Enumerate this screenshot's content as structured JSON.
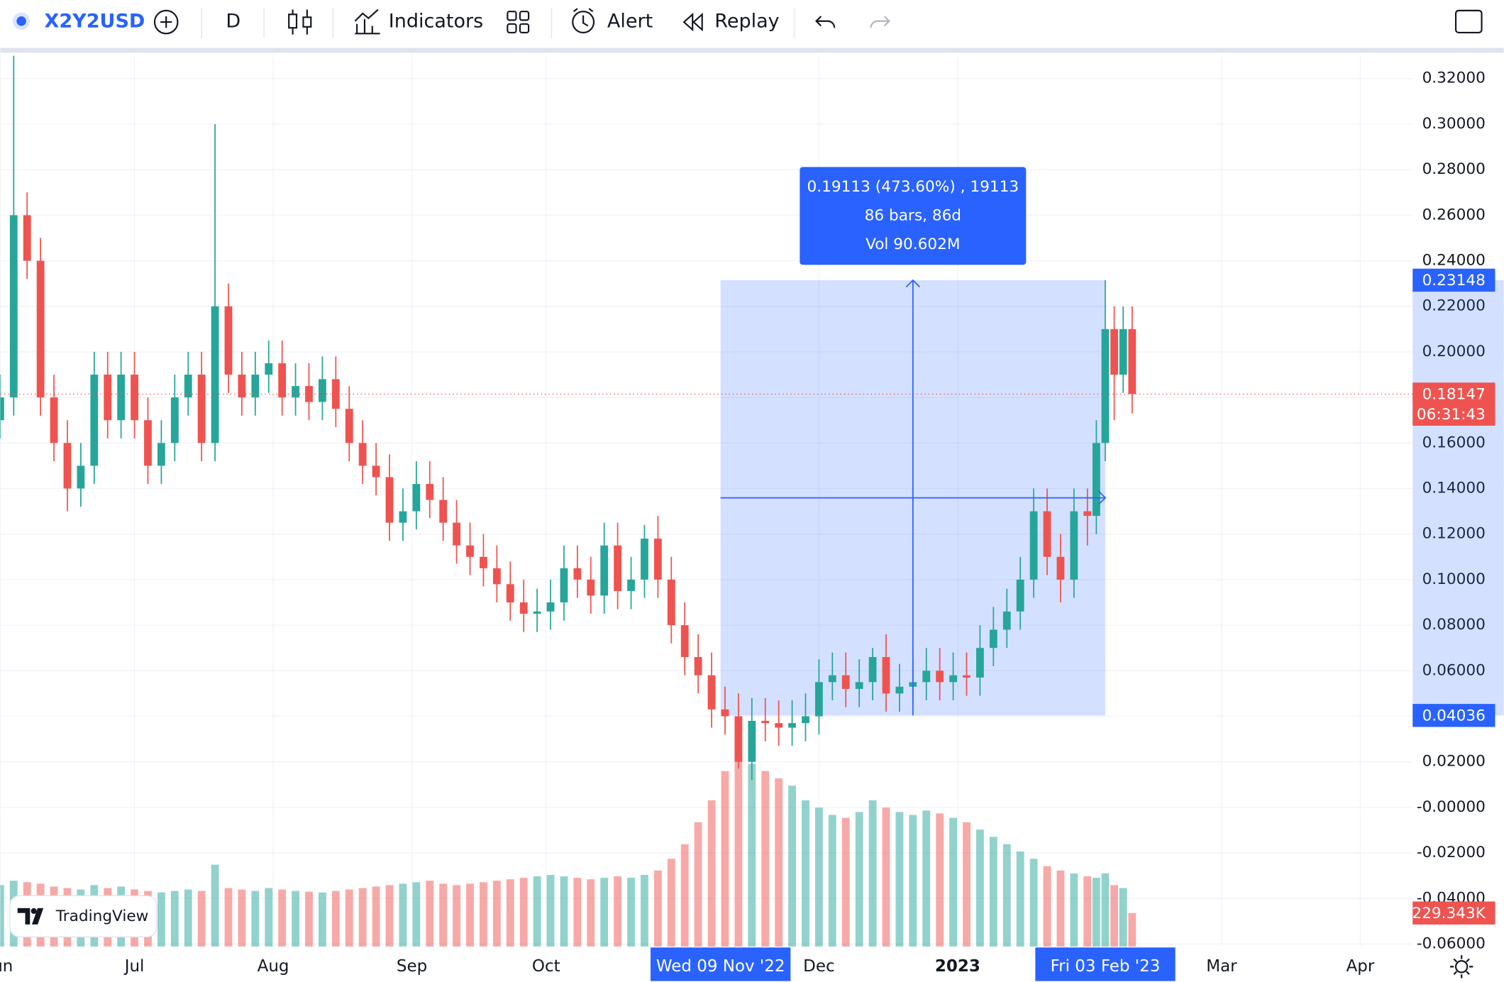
{
  "toolbar": {
    "symbol": "X2Y2USD",
    "interval": "D",
    "buttons": [
      "Indicators",
      "Alert",
      "Replay"
    ]
  },
  "watermark": "TradingView",
  "chart_data": {
    "type": "candlestick",
    "up_color": "#26a69a",
    "down_color": "#ef5350",
    "grid": true,
    "xlim": [
      0,
      315.7
    ],
    "xticks": [
      {
        "value": 0,
        "label": "Jun"
      },
      {
        "value": 30,
        "label": "Jul"
      },
      {
        "value": 61,
        "label": "Aug"
      },
      {
        "value": 92,
        "label": "Sep"
      },
      {
        "value": 122,
        "label": "Oct"
      },
      {
        "value": 183,
        "label": "Dec"
      },
      {
        "value": 214,
        "label": "2023",
        "bold": true
      },
      {
        "value": 273,
        "label": "Mar"
      },
      {
        "value": 304,
        "label": "Apr"
      }
    ],
    "ylim": [
      -0.0611,
      0.3305
    ],
    "yticks": [
      {
        "value": 0.32,
        "label": "0.32000"
      },
      {
        "value": 0.3,
        "label": "0.30000"
      },
      {
        "value": 0.28,
        "label": "0.28000"
      },
      {
        "value": 0.26,
        "label": "0.26000"
      },
      {
        "value": 0.24,
        "label": "0.24000"
      },
      {
        "value": 0.22,
        "label": "0.22000"
      },
      {
        "value": 0.2,
        "label": "0.20000"
      },
      {
        "value": 0.18,
        "label": "0.18000"
      },
      {
        "value": 0.16,
        "label": "0.16000"
      },
      {
        "value": 0.14,
        "label": "0.14000"
      },
      {
        "value": 0.12,
        "label": "0.12000"
      },
      {
        "value": 0.1,
        "label": "0.10000"
      },
      {
        "value": 0.08,
        "label": "0.08000"
      },
      {
        "value": 0.06,
        "label": "0.06000"
      },
      {
        "value": 0.04,
        "label": "0.04000"
      },
      {
        "value": 0.02,
        "label": "0.02000"
      },
      {
        "value": 0,
        "label": "-0.00000"
      },
      {
        "value": -0.02,
        "label": "-0.02000"
      },
      {
        "value": -0.04,
        "label": "-0.04000"
      },
      {
        "value": -0.06,
        "label": "-0.06000"
      }
    ],
    "volume_lim": [
      0,
      6100000
    ],
    "x": [
      0,
      3,
      6,
      9,
      12,
      15,
      18,
      21,
      24,
      27,
      30,
      33,
      36,
      39,
      42,
      45,
      48,
      51,
      54,
      57,
      60,
      63,
      66,
      69,
      72,
      75,
      78,
      81,
      84,
      87,
      90,
      93,
      96,
      99,
      102,
      105,
      108,
      111,
      114,
      117,
      120,
      123,
      126,
      129,
      132,
      135,
      138,
      141,
      144,
      147,
      150,
      153,
      156,
      159,
      162,
      165,
      168,
      171,
      174,
      177,
      180,
      183,
      186,
      189,
      192,
      195,
      198,
      201,
      204,
      207,
      210,
      213,
      216,
      219,
      222,
      225,
      228,
      231,
      234,
      237,
      240,
      243,
      245,
      247,
      249,
      251,
      253
    ],
    "open": [
      0.17,
      0.18,
      0.26,
      0.24,
      0.18,
      0.16,
      0.14,
      0.15,
      0.19,
      0.17,
      0.19,
      0.17,
      0.15,
      0.16,
      0.18,
      0.19,
      0.16,
      0.22,
      0.19,
      0.18,
      0.19,
      0.195,
      0.18,
      0.185,
      0.178,
      0.188,
      0.175,
      0.16,
      0.15,
      0.145,
      0.125,
      0.13,
      0.142,
      0.135,
      0.125,
      0.115,
      0.11,
      0.105,
      0.098,
      0.09,
      0.085,
      0.086,
      0.09,
      0.105,
      0.1,
      0.093,
      0.115,
      0.095,
      0.1,
      0.118,
      0.1,
      0.08,
      0.066,
      0.058,
      0.043,
      0.04,
      0.02,
      0.038,
      0.037,
      0.035,
      0.037,
      0.04,
      0.055,
      0.058,
      0.052,
      0.055,
      0.066,
      0.05,
      0.053,
      0.055,
      0.06,
      0.055,
      0.058,
      0.057,
      0.07,
      0.078,
      0.086,
      0.1,
      0.13,
      0.11,
      0.1,
      0.13,
      0.128,
      0.16,
      0.21,
      0.19,
      0.21
    ],
    "high": [
      0.19,
      0.33,
      0.27,
      0.25,
      0.19,
      0.17,
      0.16,
      0.2,
      0.2,
      0.2,
      0.2,
      0.18,
      0.17,
      0.19,
      0.2,
      0.2,
      0.3,
      0.23,
      0.2,
      0.2,
      0.205,
      0.205,
      0.195,
      0.195,
      0.198,
      0.198,
      0.185,
      0.17,
      0.16,
      0.155,
      0.14,
      0.152,
      0.152,
      0.145,
      0.135,
      0.125,
      0.12,
      0.115,
      0.108,
      0.1,
      0.096,
      0.1,
      0.115,
      0.115,
      0.11,
      0.125,
      0.125,
      0.11,
      0.124,
      0.128,
      0.11,
      0.09,
      0.076,
      0.068,
      0.053,
      0.05,
      0.048,
      0.048,
      0.047,
      0.047,
      0.05,
      0.065,
      0.068,
      0.068,
      0.065,
      0.07,
      0.076,
      0.063,
      0.065,
      0.07,
      0.07,
      0.068,
      0.068,
      0.08,
      0.088,
      0.096,
      0.11,
      0.14,
      0.14,
      0.12,
      0.14,
      0.14,
      0.17,
      0.2315,
      0.22,
      0.22,
      0.22
    ],
    "low": [
      0.162,
      0.172,
      0.232,
      0.172,
      0.152,
      0.13,
      0.132,
      0.142,
      0.162,
      0.162,
      0.162,
      0.142,
      0.142,
      0.152,
      0.172,
      0.152,
      0.152,
      0.182,
      0.172,
      0.172,
      0.182,
      0.172,
      0.172,
      0.17,
      0.17,
      0.167,
      0.152,
      0.142,
      0.137,
      0.117,
      0.117,
      0.122,
      0.127,
      0.117,
      0.107,
      0.102,
      0.097,
      0.09,
      0.082,
      0.077,
      0.077,
      0.078,
      0.082,
      0.092,
      0.085,
      0.085,
      0.087,
      0.087,
      0.092,
      0.092,
      0.072,
      0.058,
      0.05,
      0.035,
      0.032,
      0.017,
      0.012,
      0.029,
      0.027,
      0.027,
      0.029,
      0.032,
      0.047,
      0.044,
      0.044,
      0.047,
      0.042,
      0.042,
      0.045,
      0.047,
      0.047,
      0.047,
      0.049,
      0.049,
      0.062,
      0.07,
      0.078,
      0.092,
      0.102,
      0.09,
      0.092,
      0.115,
      0.12,
      0.152,
      0.17,
      0.182,
      0.173
    ],
    "close": [
      0.18,
      0.26,
      0.24,
      0.18,
      0.16,
      0.14,
      0.15,
      0.19,
      0.17,
      0.19,
      0.17,
      0.15,
      0.16,
      0.18,
      0.19,
      0.16,
      0.22,
      0.19,
      0.18,
      0.19,
      0.195,
      0.18,
      0.185,
      0.178,
      0.188,
      0.175,
      0.16,
      0.15,
      0.145,
      0.125,
      0.13,
      0.142,
      0.135,
      0.125,
      0.115,
      0.11,
      0.105,
      0.098,
      0.09,
      0.085,
      0.086,
      0.09,
      0.105,
      0.1,
      0.093,
      0.115,
      0.095,
      0.1,
      0.118,
      0.1,
      0.08,
      0.066,
      0.058,
      0.043,
      0.04,
      0.02,
      0.038,
      0.037,
      0.035,
      0.037,
      0.04,
      0.055,
      0.058,
      0.052,
      0.055,
      0.066,
      0.05,
      0.053,
      0.055,
      0.06,
      0.055,
      0.058,
      0.057,
      0.07,
      0.078,
      0.086,
      0.1,
      0.13,
      0.11,
      0.1,
      0.13,
      0.128,
      0.16,
      0.21,
      0.19,
      0.21,
      0.18147
    ],
    "volume": [
      420000,
      450000,
      440000,
      430000,
      410000,
      400000,
      390000,
      420000,
      400000,
      410000,
      390000,
      380000,
      370000,
      380000,
      390000,
      380000,
      560000,
      400000,
      390000,
      380000,
      400000,
      390000,
      380000,
      375000,
      370000,
      380000,
      390000,
      400000,
      410000,
      420000,
      430000,
      440000,
      450000,
      430000,
      420000,
      430000,
      440000,
      450000,
      460000,
      470000,
      480000,
      490000,
      480000,
      470000,
      460000,
      470000,
      480000,
      470000,
      490000,
      520000,
      600000,
      700000,
      850000,
      1000000,
      1200000,
      1300000,
      1250000,
      1200000,
      1150000,
      1100000,
      1000000,
      950000,
      900000,
      880000,
      920000,
      1000000,
      950000,
      920000,
      900000,
      930000,
      910000,
      880000,
      850000,
      800000,
      750000,
      700000,
      650000,
      600000,
      550000,
      520000,
      500000,
      480000,
      470000,
      500000,
      420000,
      400000,
      229343
    ],
    "last_volume_label": "229.343K",
    "last_price": 0.18147,
    "countdown": "06:31:43",
    "cursor_x": [
      {
        "value": 161,
        "label": "Wed 09 Nov '22"
      },
      {
        "value": 247,
        "label": "Fri 03 Feb '23"
      }
    ],
    "cursor_y": [
      0.23148,
      0.04036
    ],
    "measure": {
      "x_range": [
        161,
        247
      ],
      "y_range": [
        0.04036,
        0.23148
      ],
      "lines": [
        "0.19113 (473.60%) , 19113",
        "86 bars, 86d",
        "Vol 90.602M"
      ]
    }
  }
}
